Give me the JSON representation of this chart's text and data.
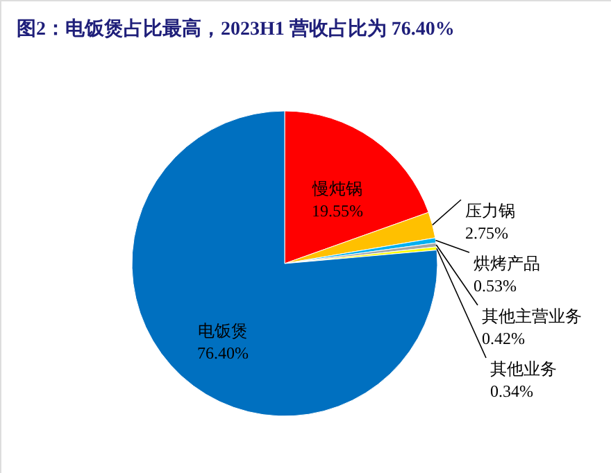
{
  "chart_data": {
    "type": "pie",
    "title": "图2：电饭煲占比最高，2023H1 营收占比为 76.40%",
    "categories": [
      "慢炖锅",
      "压力锅",
      "烘烤产品",
      "其他主营业务",
      "其他业务",
      "电饭煲"
    ],
    "values": [
      19.55,
      2.75,
      0.53,
      0.42,
      0.34,
      76.4
    ],
    "colors": [
      "#ff0000",
      "#ffc000",
      "#00b0f0",
      "#a5a5a5",
      "#ffff00",
      "#0070c0"
    ],
    "value_labels": [
      "19.55%",
      "2.75%",
      "0.53%",
      "0.42%",
      "0.34%",
      "76.40%"
    ],
    "legend": false
  }
}
